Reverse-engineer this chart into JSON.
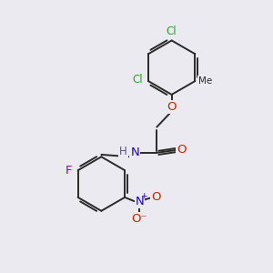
{
  "bg_color": "#eaeaf0",
  "bond_color": "#2a2a2a",
  "bond_width": 1.4,
  "colors": {
    "C": "#2a2a2a",
    "O": "#cc2200",
    "N": "#2200cc",
    "Cl": "#22aa22",
    "F": "#9900aa",
    "H": "#555577"
  },
  "font_size": 8.5,
  "fig_size": [
    3.0,
    3.0
  ],
  "dpi": 100
}
